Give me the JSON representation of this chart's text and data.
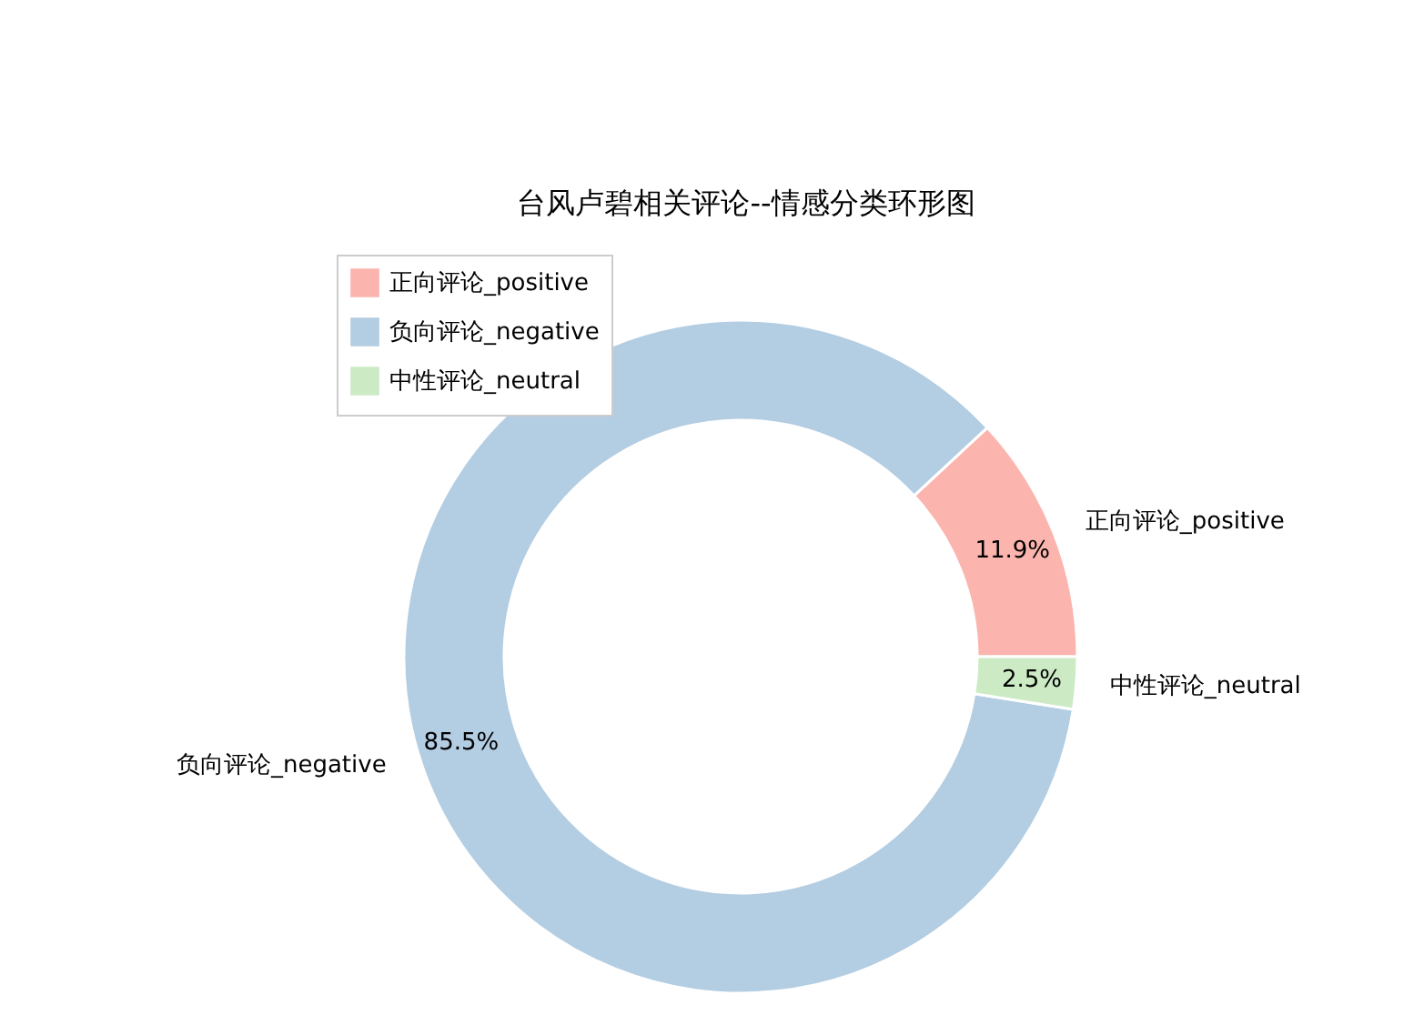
{
  "chart_data": {
    "type": "donut",
    "title": "台风卢碧相关评论--情感分类环形图",
    "categories": [
      "正向评论_positive",
      "负向评论_negative",
      "中性评论_neutral"
    ],
    "values": [
      11.9,
      85.5,
      2.5
    ],
    "colors": [
      "#fbb4ae",
      "#b3cde3",
      "#ccebc5"
    ],
    "value_labels": [
      "11.9%",
      "85.5%",
      "2.5%"
    ],
    "legend": "top left"
  }
}
